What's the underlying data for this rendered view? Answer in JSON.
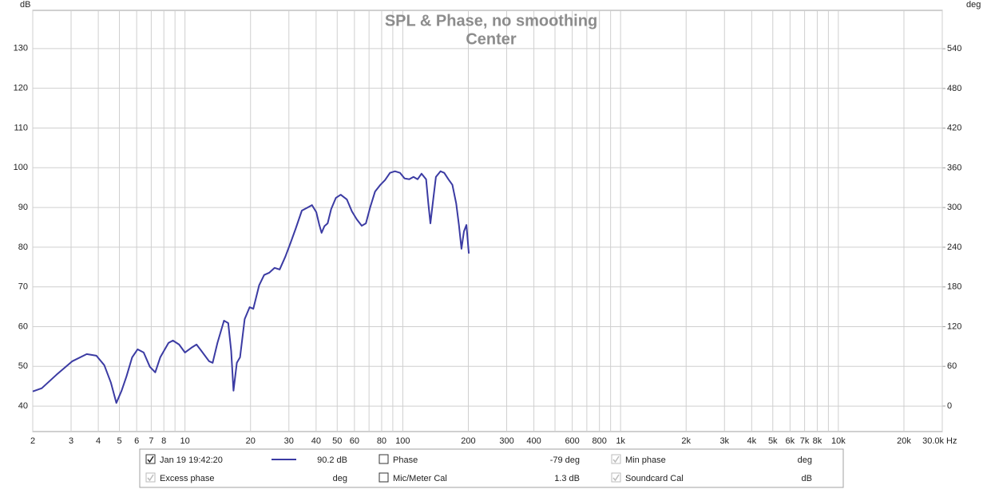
{
  "chart_data": {
    "type": "line",
    "title": "SPL & Phase, no smoothing",
    "subtitle": "Center",
    "ylabel": "dB",
    "y2label": "deg",
    "xlabel": "Hz",
    "xscale": "log",
    "grid": true,
    "xlim": [
      2,
      30000
    ],
    "xticks": [
      2,
      3,
      4,
      5,
      6,
      7,
      8,
      10,
      20,
      30,
      40,
      50,
      60,
      80,
      100,
      200,
      300,
      400,
      600,
      800,
      {
        "value": 1000,
        "label": "1k"
      },
      {
        "value": 2000,
        "label": "2k"
      },
      {
        "value": 3000,
        "label": "3k"
      },
      {
        "value": 4000,
        "label": "4k"
      },
      {
        "value": 5000,
        "label": "5k"
      },
      {
        "value": 6000,
        "label": "6k"
      },
      {
        "value": 7000,
        "label": "7k"
      },
      {
        "value": 8000,
        "label": "8k"
      },
      {
        "value": 10000,
        "label": "10k"
      },
      {
        "value": 20000,
        "label": "20k"
      },
      {
        "value": 30000,
        "label": "30.0k"
      }
    ],
    "x_minor_grid": [
      9,
      70,
      90,
      500,
      700,
      900,
      9000
    ],
    "ylim": [
      33.6,
      139.6
    ],
    "yticks": [
      40,
      50,
      60,
      70,
      80,
      90,
      100,
      110,
      120,
      130
    ],
    "y2lim": [
      -38.6,
      598
    ],
    "y2ticks": [
      0,
      60,
      120,
      180,
      240,
      300,
      360,
      420,
      480,
      540
    ],
    "x": [
      2,
      2.2,
      2.57,
      3.04,
      3.54,
      3.92,
      4.26,
      4.57,
      4.84,
      5.12,
      5.39,
      5.72,
      6.06,
      6.46,
      6.9,
      7.3,
      7.7,
      8.4,
      8.8,
      9.4,
      10,
      10.7,
      11.3,
      11.9,
      12.9,
      13.4,
      14.1,
      15.1,
      15.8,
      16.3,
      16.7,
      17.3,
      17.9,
      18.8,
      19.8,
      20.6,
      21.9,
      23.1,
      24.4,
      25.8,
      27.2,
      28.9,
      30.5,
      32.3,
      34.4,
      36.6,
      38.3,
      40.1,
      41.4,
      42.4,
      43.7,
      45.2,
      46.9,
      49.3,
      51.9,
      55.4,
      58.4,
      61.5,
      64.8,
      67.7,
      70.8,
      74.6,
      78.6,
      82.9,
      87.4,
      92.1,
      97.2,
      102,
      107,
      112,
      117,
      122,
      128,
      131,
      134,
      138,
      142,
      149,
      155,
      162,
      169,
      176,
      181,
      186,
      191,
      196,
      201
    ],
    "series": [
      {
        "name": "Jan 19 19:42:20",
        "color": "#3b3ba3",
        "values": [
          43.7,
          44.5,
          47.9,
          51.3,
          53.1,
          52.7,
          50.3,
          45.9,
          40.8,
          43.9,
          47.5,
          52.3,
          54.3,
          53.5,
          49.9,
          48.5,
          52.3,
          55.9,
          56.5,
          55.5,
          53.5,
          54.7,
          55.5,
          53.9,
          51.3,
          50.9,
          55.9,
          61.5,
          60.9,
          53.9,
          43.9,
          50.9,
          52.3,
          61.9,
          64.9,
          64.5,
          70.4,
          73.0,
          73.6,
          74.8,
          74.4,
          77.6,
          81.0,
          84.8,
          89.2,
          90.0,
          90.6,
          88.8,
          85.6,
          83.6,
          85.3,
          86.0,
          89.6,
          92.4,
          93.2,
          92.0,
          89.0,
          87.0,
          85.4,
          86.0,
          90.0,
          94.0,
          95.6,
          96.9,
          98.7,
          99.1,
          98.7,
          97.3,
          97.1,
          97.7,
          97.1,
          98.5,
          97.1,
          91.0,
          86.0,
          92.0,
          97.7,
          99.1,
          98.7,
          97.1,
          95.7,
          91.0,
          85.6,
          79.6,
          84.0,
          85.6,
          78.4
        ]
      }
    ]
  },
  "readout_panel": {
    "items": [
      {
        "readout": "90.2 dB",
        "checked": true,
        "enabled": true,
        "color": "#3b3ba3"
      },
      {
        "label": "Phase",
        "readout": "-79 deg",
        "checked": false,
        "enabled": true,
        "color": "#3b3ba3"
      },
      {
        "label": "Min phase",
        "readout": "deg",
        "checked": true,
        "enabled": false,
        "color": "#a8a8a8"
      },
      {
        "label": "Excess phase",
        "readout": "deg",
        "checked": true,
        "enabled": false,
        "color": "#a8a8a8"
      },
      {
        "label": "Mic/Meter Cal",
        "readout": "1.3 dB",
        "checked": false,
        "enabled": true,
        "color": "#000000"
      },
      {
        "label": "Soundcard Cal",
        "readout": "dB",
        "checked": true,
        "enabled": false,
        "color": "#a8a8a8"
      }
    ]
  }
}
